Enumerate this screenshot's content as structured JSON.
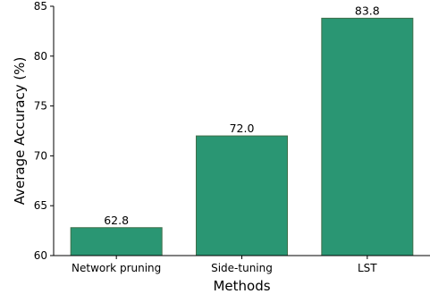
{
  "chart_data": {
    "type": "bar",
    "categories": [
      "Network pruning",
      "Side-tuning",
      "LST"
    ],
    "values": [
      62.8,
      72.0,
      83.8
    ],
    "value_labels": [
      "62.8",
      "72.0",
      "83.8"
    ],
    "title": "",
    "xlabel": "Methods",
    "ylabel": "Average Accuracy (%)",
    "ylim": [
      60,
      85
    ],
    "yticks": [
      60,
      65,
      70,
      75,
      80,
      85
    ],
    "grid": false,
    "legend": "none",
    "bar_color": "#2a9673",
    "bar_edge_color": "#3f6f4a"
  }
}
